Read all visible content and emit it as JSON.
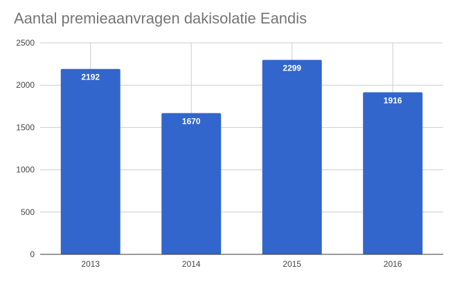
{
  "chart_data": {
    "type": "bar",
    "title": "Aantal premieaanvragen dakisolatie Eandis",
    "categories": [
      "2013",
      "2014",
      "2015",
      "2016"
    ],
    "values": [
      2192,
      1670,
      2299,
      1916
    ],
    "data_labels": [
      "2192",
      "1670",
      "2299",
      "1916"
    ],
    "ylim": [
      0,
      2500
    ],
    "yticks": [
      0,
      500,
      1000,
      1500,
      2000,
      2500
    ],
    "ytick_labels": [
      "0",
      "500",
      "1000",
      "1500",
      "2000",
      "2500"
    ],
    "grid": true,
    "legend": "none",
    "bar_color": "#3366cc",
    "grid_color": "#cccccc",
    "axis_color": "#333333"
  }
}
